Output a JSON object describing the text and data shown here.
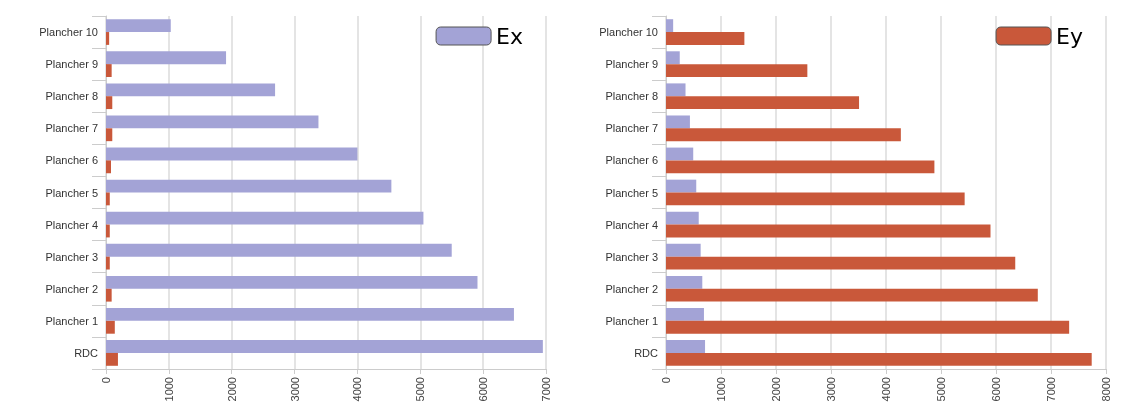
{
  "chart_data": [
    {
      "type": "bar",
      "orientation": "horizontal",
      "categories": [
        "Plancher 10",
        "Plancher 9",
        "Plancher 8",
        "Plancher 7",
        "Plancher 6",
        "Plancher 5",
        "Plancher 4",
        "Plancher 3",
        "Plancher 2",
        "Plancher 1",
        "RDC"
      ],
      "series": [
        {
          "name": "Ex",
          "color": "#a3a3d6",
          "values": [
            1030,
            1910,
            2690,
            3380,
            4000,
            4540,
            5050,
            5500,
            5910,
            6490,
            6950
          ]
        },
        {
          "color": "#c9583a",
          "values": [
            50,
            90,
            100,
            100,
            80,
            60,
            60,
            60,
            90,
            140,
            190
          ]
        }
      ],
      "xlim": [
        0,
        7000
      ],
      "xticks": [
        0,
        1000,
        2000,
        3000,
        4000,
        5000,
        6000,
        7000
      ],
      "grid": "x",
      "legend": "top right"
    },
    {
      "type": "bar",
      "orientation": "horizontal",
      "categories": [
        "Plancher 10",
        "Plancher 9",
        "Plancher 8",
        "Plancher 7",
        "Plancher 6",
        "Plancher 5",
        "Plancher 4",
        "Plancher 3",
        "Plancher 2",
        "Plancher 1",
        "RDC"
      ],
      "series": [
        {
          "color": "#a3a3d6",
          "values": [
            130,
            250,
            355,
            435,
            495,
            550,
            595,
            630,
            660,
            690,
            710
          ]
        },
        {
          "name": "Ey",
          "color": "#c9583a",
          "values": [
            1425,
            2570,
            3510,
            4270,
            4880,
            5430,
            5900,
            6350,
            6760,
            7330,
            7740
          ]
        }
      ],
      "xlim": [
        0,
        8000
      ],
      "xticks": [
        0,
        1000,
        2000,
        3000,
        4000,
        5000,
        6000,
        7000,
        8000
      ],
      "grid": "x",
      "legend": "top right"
    }
  ]
}
